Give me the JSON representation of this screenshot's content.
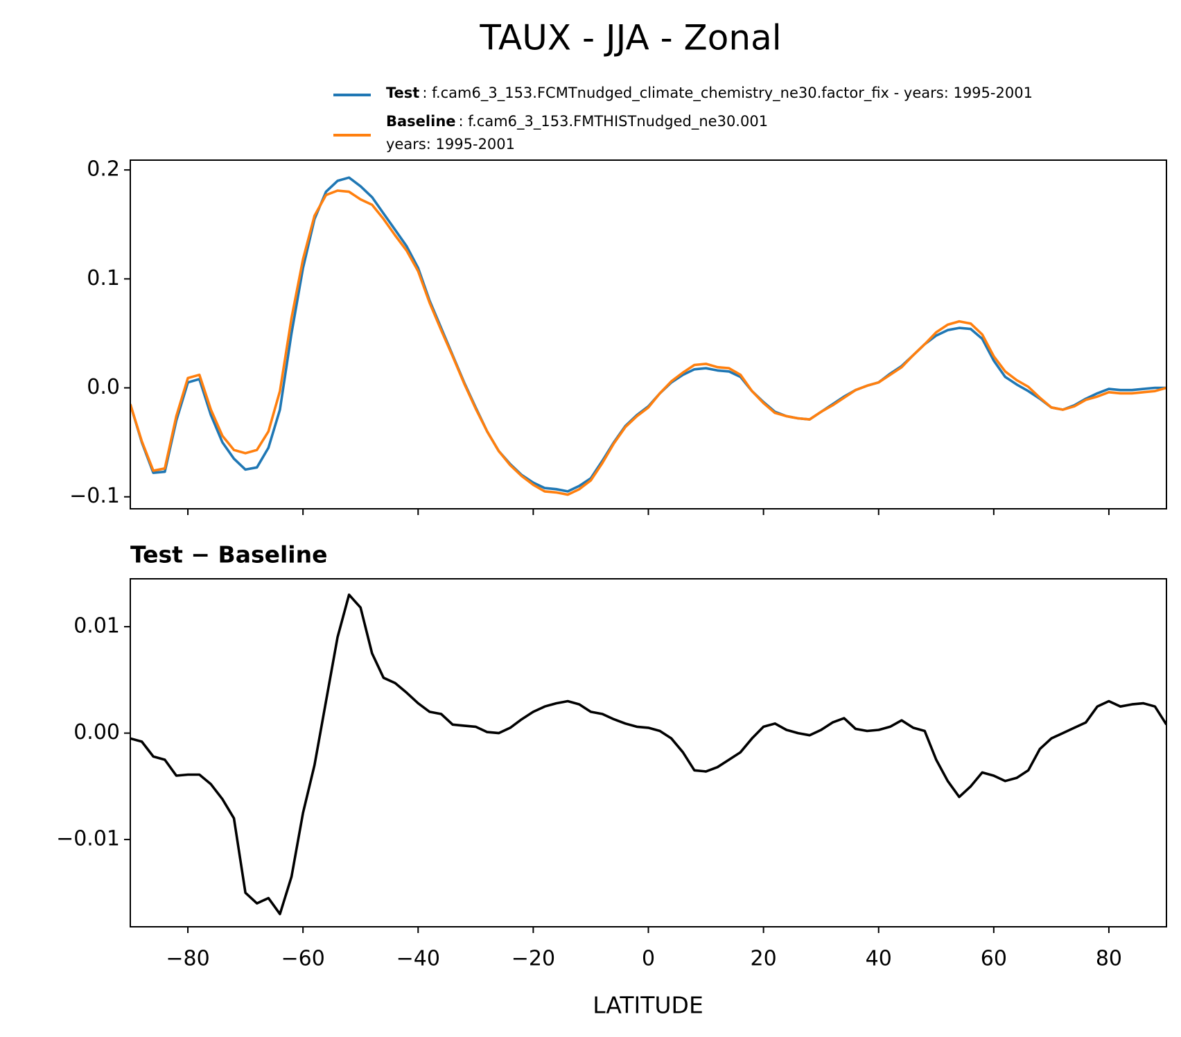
{
  "chart_data": [
    {
      "type": "line",
      "title": "TAUX - JJA - Zonal",
      "x": [
        -90,
        -88,
        -86,
        -84,
        -82,
        -80,
        -78,
        -76,
        -74,
        -72,
        -70,
        -68,
        -66,
        -64,
        -62,
        -60,
        -58,
        -56,
        -54,
        -52,
        -50,
        -48,
        -46,
        -44,
        -42,
        -40,
        -38,
        -36,
        -34,
        -32,
        -30,
        -28,
        -26,
        -24,
        -22,
        -20,
        -18,
        -16,
        -14,
        -12,
        -10,
        -8,
        -6,
        -4,
        -2,
        0,
        2,
        4,
        6,
        8,
        10,
        12,
        14,
        16,
        18,
        20,
        22,
        24,
        26,
        28,
        30,
        32,
        34,
        36,
        38,
        40,
        42,
        44,
        46,
        48,
        50,
        52,
        54,
        56,
        58,
        60,
        62,
        64,
        66,
        68,
        70,
        72,
        74,
        76,
        78,
        80,
        82,
        84,
        86,
        88,
        90
      ],
      "series": [
        {
          "name": "Test",
          "description": [
            ": f.cam6_3_153.FCMTnudged_climate_chemistry_ne30.factor_fix - years: 1995-2001"
          ],
          "color": "#1f77b4",
          "values": [
            -0.015,
            -0.05,
            -0.078,
            -0.077,
            -0.03,
            0.005,
            0.008,
            -0.025,
            -0.05,
            -0.065,
            -0.075,
            -0.073,
            -0.055,
            -0.02,
            0.05,
            0.11,
            0.155,
            0.18,
            0.19,
            0.193,
            0.185,
            0.175,
            0.16,
            0.145,
            0.13,
            0.11,
            0.08,
            0.055,
            0.03,
            0.005,
            -0.018,
            -0.04,
            -0.058,
            -0.07,
            -0.08,
            -0.087,
            -0.092,
            -0.093,
            -0.095,
            -0.09,
            -0.083,
            -0.067,
            -0.05,
            -0.035,
            -0.025,
            -0.017,
            -0.005,
            0.005,
            0.012,
            0.017,
            0.018,
            0.016,
            0.015,
            0.01,
            -0.003,
            -0.013,
            -0.022,
            -0.026,
            -0.028,
            -0.029,
            -0.022,
            -0.015,
            -0.008,
            -0.002,
            0.002,
            0.005,
            0.013,
            0.02,
            0.03,
            0.04,
            0.048,
            0.053,
            0.055,
            0.054,
            0.045,
            0.025,
            0.01,
            0.003,
            -0.003,
            -0.01,
            -0.018,
            -0.02,
            -0.016,
            -0.01,
            -0.005,
            -0.001,
            -0.002,
            -0.002,
            -0.001,
            0,
            0
          ]
        },
        {
          "name": "Baseline",
          "description": [
            ": f.cam6_3_153.FMTHISTnudged_ne30.001",
            "years: 1995-2001"
          ],
          "color": "#ff7f0e",
          "values": [
            -0.015,
            -0.049,
            -0.076,
            -0.074,
            -0.026,
            0.009,
            0.012,
            -0.02,
            -0.044,
            -0.057,
            -0.06,
            -0.057,
            -0.04,
            -0.003,
            0.064,
            0.118,
            0.158,
            0.177,
            0.181,
            0.18,
            0.173,
            0.168,
            0.155,
            0.14,
            0.126,
            0.107,
            0.078,
            0.053,
            0.029,
            0.004,
            -0.019,
            -0.04,
            -0.058,
            -0.071,
            -0.081,
            -0.089,
            -0.095,
            -0.096,
            -0.098,
            -0.093,
            -0.085,
            -0.069,
            -0.051,
            -0.036,
            -0.026,
            -0.018,
            -0.005,
            0.006,
            0.014,
            0.021,
            0.022,
            0.019,
            0.018,
            0.012,
            -0.003,
            -0.014,
            -0.023,
            -0.026,
            -0.028,
            -0.029,
            -0.022,
            -0.016,
            -0.009,
            -0.002,
            0.002,
            0.005,
            0.012,
            0.019,
            0.03,
            0.04,
            0.051,
            0.058,
            0.061,
            0.059,
            0.049,
            0.029,
            0.015,
            0.007,
            0.001,
            -0.009,
            -0.018,
            -0.02,
            -0.017,
            -0.011,
            -0.008,
            -0.004,
            -0.005,
            -0.005,
            -0.004,
            -0.003,
            0
          ]
        }
      ],
      "xlim": [
        -90,
        90
      ],
      "xticks": [
        -80,
        -60,
        -40,
        -20,
        0,
        20,
        40,
        60,
        80
      ],
      "ylim": [
        -0.111,
        0.209
      ],
      "yticks": [
        {
          "value": -0.1,
          "label": "−0.1"
        },
        {
          "value": 0,
          "label": "0.0"
        },
        0.1,
        0.2
      ]
    },
    {
      "type": "line",
      "title": "Test − Baseline",
      "xlabel": "LATITUDE",
      "x": [
        -90,
        -88,
        -86,
        -84,
        -82,
        -80,
        -78,
        -76,
        -74,
        -72,
        -70,
        -68,
        -66,
        -64,
        -62,
        -60,
        -58,
        -56,
        -54,
        -52,
        -50,
        -48,
        -46,
        -44,
        -42,
        -40,
        -38,
        -36,
        -34,
        -32,
        -30,
        -28,
        -26,
        -24,
        -22,
        -20,
        -18,
        -16,
        -14,
        -12,
        -10,
        -8,
        -6,
        -4,
        -2,
        0,
        2,
        4,
        6,
        8,
        10,
        12,
        14,
        16,
        18,
        20,
        22,
        24,
        26,
        28,
        30,
        32,
        34,
        36,
        38,
        40,
        42,
        44,
        46,
        48,
        50,
        52,
        54,
        56,
        58,
        60,
        62,
        64,
        66,
        68,
        70,
        72,
        74,
        76,
        78,
        80,
        82,
        84,
        86,
        88,
        90
      ],
      "series": [
        {
          "color": "#000000",
          "values": [
            -0.0005,
            -0.0008,
            -0.0022,
            -0.0025,
            -0.004,
            -0.0039,
            -0.0039,
            -0.0048,
            -0.0062,
            -0.008,
            -0.015,
            -0.016,
            -0.0155,
            -0.017,
            -0.0135,
            -0.0075,
            -0.003,
            0.003,
            0.009,
            0.013,
            0.0118,
            0.0075,
            0.0052,
            0.0047,
            0.0038,
            0.0028,
            0.002,
            0.0018,
            0.0008,
            0.0007,
            0.0006,
            0.0001,
            0,
            0.0005,
            0.0013,
            0.002,
            0.0025,
            0.0028,
            0.003,
            0.0027,
            0.002,
            0.0018,
            0.0013,
            0.0009,
            0.0006,
            0.0005,
            0.0002,
            -0.0005,
            -0.0018,
            -0.0035,
            -0.0036,
            -0.0032,
            -0.0025,
            -0.0018,
            -0.0005,
            0.0006,
            0.0009,
            0.0003,
            0,
            -0.0002,
            0.0003,
            0.001,
            0.0014,
            0.0004,
            0.0002,
            0.0003,
            0.0006,
            0.0012,
            0.0005,
            0.0002,
            -0.0025,
            -0.0045,
            -0.006,
            -0.005,
            -0.0037,
            -0.004,
            -0.0045,
            -0.0042,
            -0.0035,
            -0.0015,
            -0.0005,
            0,
            0.0005,
            0.001,
            0.0025,
            0.003,
            0.0025,
            0.0027,
            0.0028,
            0.0025,
            0.0008
          ]
        }
      ],
      "xlim": [
        -90,
        90
      ],
      "xticks": [
        {
          "value": -80,
          "label": "−80"
        },
        {
          "value": -60,
          "label": "−60"
        },
        {
          "value": -40,
          "label": "−40"
        },
        {
          "value": -20,
          "label": "−20"
        },
        0,
        20,
        40,
        60,
        80
      ],
      "ylim": [
        -0.0182,
        0.0145
      ],
      "yticks": [
        {
          "value": -0.01,
          "label": "−0.01"
        },
        {
          "value": 0,
          "label": "0.00"
        },
        0.01
      ]
    }
  ]
}
